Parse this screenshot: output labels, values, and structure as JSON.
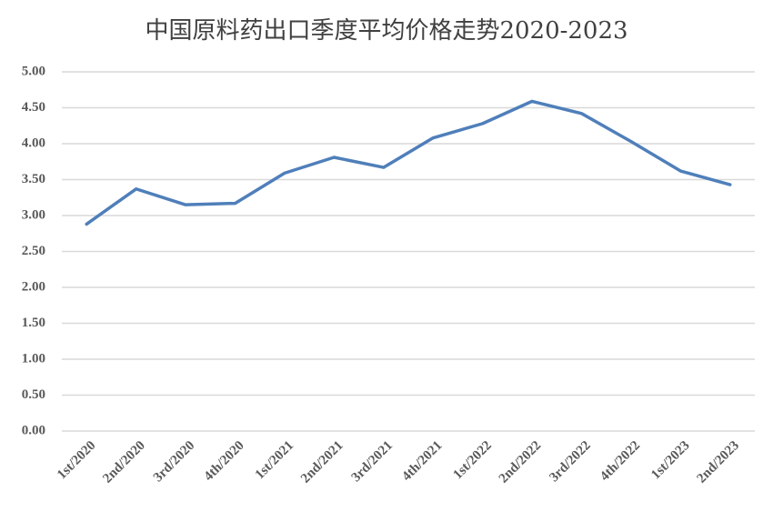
{
  "chart_data": {
    "type": "line",
    "title": "中国原料药出口季度平均价格走势2020-2023",
    "categories": [
      "1st/2020",
      "2nd/2020",
      "3rd/2020",
      "4th/2020",
      "1st/2021",
      "2nd/2021",
      "3rd/2021",
      "4th/2021",
      "1st/2022",
      "2nd/2022",
      "3rd/2022",
      "4th/2022",
      "1st/2023",
      "2nd/2023"
    ],
    "values": [
      2.88,
      3.37,
      3.15,
      3.17,
      3.59,
      3.81,
      3.67,
      4.08,
      4.28,
      4.59,
      4.42,
      4.03,
      3.62,
      3.43
    ],
    "color": "#4f7fba",
    "ylim": [
      0,
      5
    ],
    "yticks": [
      {
        "value": 0,
        "label": "0.00"
      },
      {
        "value": 0.5,
        "label": "0.50"
      },
      {
        "value": 1,
        "label": "1.00"
      },
      {
        "value": 1.5,
        "label": "1.50"
      },
      {
        "value": 2,
        "label": "2.00"
      },
      {
        "value": 2.5,
        "label": "2.50"
      },
      {
        "value": 3,
        "label": "3.00"
      },
      {
        "value": 3.5,
        "label": "3.50"
      },
      {
        "value": 4,
        "label": "4.00"
      },
      {
        "value": 4.5,
        "label": "4.50"
      },
      {
        "value": 5,
        "label": "5.00"
      }
    ],
    "grid": true
  }
}
